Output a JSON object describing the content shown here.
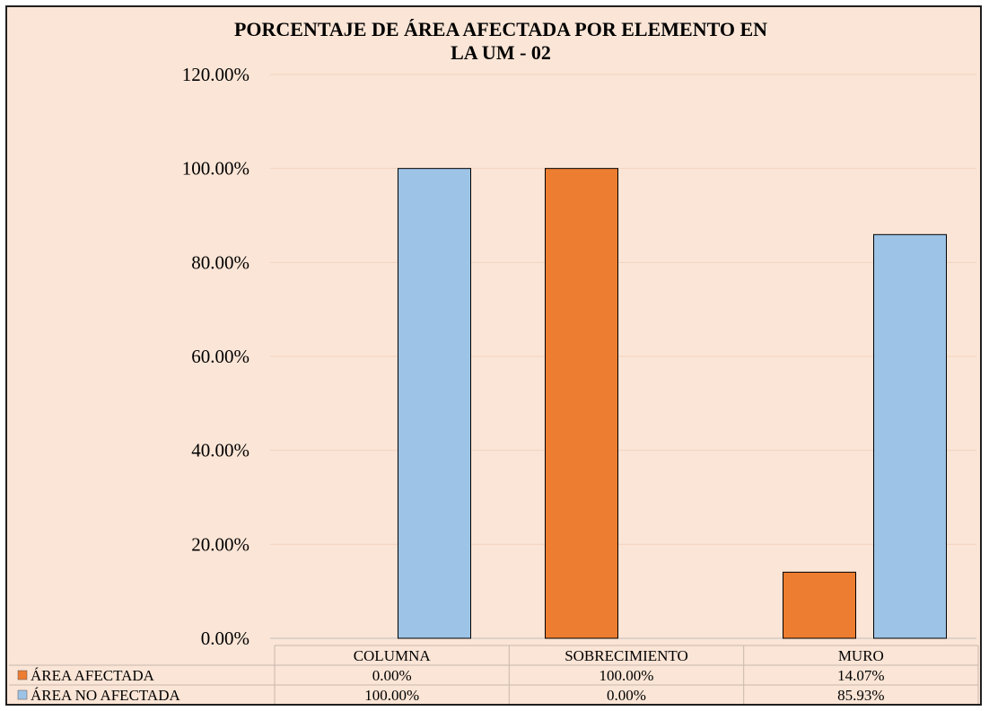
{
  "chart_data": {
    "type": "bar",
    "title": [
      "PORCENTAJE DE ÁREA AFECTADA POR ELEMENTO EN",
      "LA UM - 02"
    ],
    "categories": [
      "COLUMNA",
      "SOBRECIMIENTO",
      "MURO"
    ],
    "series": [
      {
        "name": "ÁREA AFECTADA",
        "values": [
          0.0,
          100.0,
          14.07
        ],
        "color": "#ed7d31",
        "labels": [
          "0.00%",
          "100.00%",
          "14.07%"
        ]
      },
      {
        "name": "ÁREA NO AFECTADA",
        "values": [
          100.0,
          0.0,
          85.93
        ],
        "color": "#9dc3e6",
        "labels": [
          "100.00%",
          "0.00%",
          "85.93%"
        ]
      }
    ],
    "ylim": [
      0,
      120
    ],
    "yticks": [
      "0.00%",
      "20.00%",
      "40.00%",
      "60.00%",
      "80.00%",
      "100.00%",
      "120.00%"
    ],
    "grid": true,
    "legend": "data-table"
  }
}
